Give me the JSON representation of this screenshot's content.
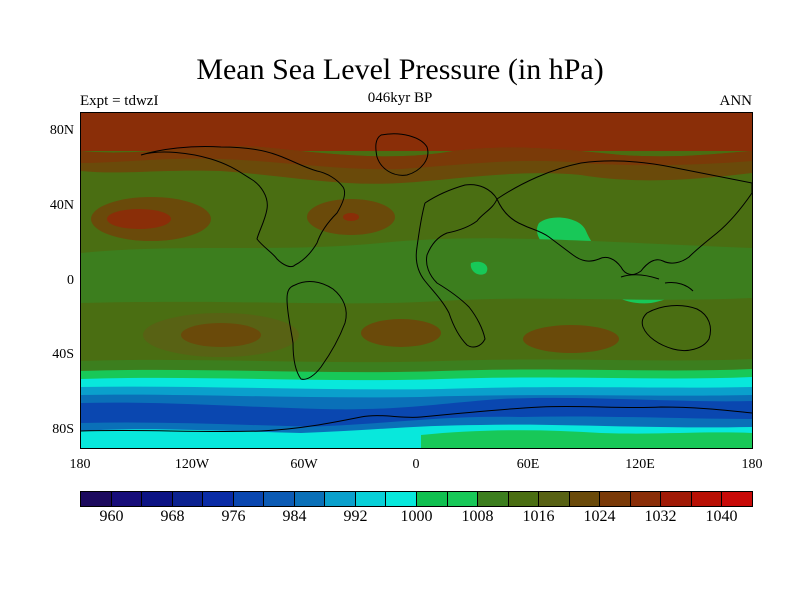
{
  "title": "Mean Sea Level Pressure (in hPa)",
  "subtitle": "046kyr BP",
  "left_label": "Expt = tdwzI",
  "right_label": "ANN",
  "lat_labels": [
    "80N",
    "40N",
    "0",
    "40S",
    "80S"
  ],
  "lon_labels": [
    "180",
    "120W",
    "60W",
    "0",
    "60E",
    "120E",
    "180"
  ],
  "colorbar": {
    "tick_labels": [
      "960",
      "968",
      "976",
      "984",
      "992",
      "1000",
      "1008",
      "1016",
      "1024",
      "1032",
      "1040"
    ],
    "colors": [
      "#1c0a5e",
      "#170d7a",
      "#0c1384",
      "#0b2290",
      "#0a2ca6",
      "#0a47b0",
      "#0c5bb4",
      "#0a70b8",
      "#0aa0cc",
      "#08d0d8",
      "#08e8dc",
      "#10c050",
      "#18c858",
      "#3c7e1e",
      "#4a6e12",
      "#586214",
      "#6a4a0a",
      "#7a3a08",
      "#8a2e08",
      "#a01a06",
      "#b81004",
      "#c80a08"
    ]
  },
  "map": {
    "contour_colors": {
      "high_1032": "#a01a06",
      "high_1024": "#8a2e08",
      "mid_1020": "#6a4a0a",
      "mid_1016": "#586214",
      "mid_1012": "#4a6e12",
      "low_1008": "#3c7e1e",
      "low_1004": "#18c858",
      "low_1000": "#10c050",
      "low_996": "#08e8dc",
      "low_988": "#0aa0cc",
      "low_984": "#0a70b8",
      "low_976": "#0a47b0",
      "coastline": "#000000"
    }
  }
}
